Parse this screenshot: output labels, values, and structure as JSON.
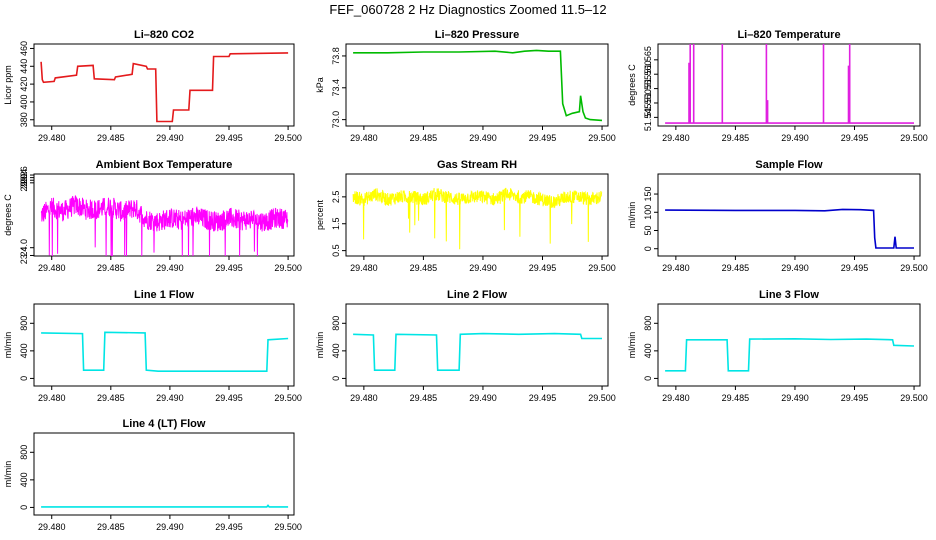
{
  "page": {
    "title": "FEF_060728  2 Hz Diagnostics Zoomed 11.5–12"
  },
  "chart_data": [
    {
      "type": "line",
      "title": "Li–820 CO2",
      "ylabel": "Licor ppm",
      "color": "#e41a1c",
      "xlim": [
        29.4785,
        29.5005
      ],
      "ylim": [
        373,
        465
      ],
      "x_ticks": [
        "29.480",
        "29.485",
        "29.490",
        "29.495",
        "29.500"
      ],
      "y_ticks": [
        {
          "v": 380,
          "label": "380"
        },
        {
          "v": 400,
          "label": "400"
        },
        {
          "v": 420,
          "label": "420"
        },
        {
          "v": 440,
          "label": "440"
        },
        {
          "v": 460,
          "label": "460"
        }
      ],
      "series": [
        {
          "x": [
            29.4791,
            29.4792,
            29.4793,
            29.4802,
            29.4803,
            29.4821,
            29.4822,
            29.4835,
            29.4836,
            29.4853,
            29.4854,
            29.4868,
            29.4869,
            29.488,
            29.4881,
            29.4888,
            29.4889,
            29.4902,
            29.4903,
            29.4916,
            29.4917,
            29.4936,
            29.4937,
            29.495,
            29.4951,
            29.5
          ],
          "y": [
            445,
            425,
            422,
            423,
            427,
            430,
            440,
            441,
            426,
            425,
            428,
            431,
            443,
            440,
            437,
            437,
            378,
            378,
            391,
            391,
            413,
            413,
            451,
            451,
            454,
            455
          ]
        }
      ]
    },
    {
      "type": "line",
      "title": "Li–820 Pressure",
      "ylabel": "kPa",
      "color": "#00bb00",
      "xlim": [
        29.4785,
        29.5005
      ],
      "ylim": [
        72.92,
        73.95
      ],
      "x_ticks": [
        "29.480",
        "29.485",
        "29.490",
        "29.495",
        "29.500"
      ],
      "y_ticks": [
        {
          "v": 73.0,
          "label": "73.0"
        },
        {
          "v": 73.4,
          "label": "73.4"
        },
        {
          "v": 73.8,
          "label": "73.8"
        }
      ],
      "series": [
        {
          "x": [
            29.4791,
            29.482,
            29.485,
            29.488,
            29.491,
            29.4925,
            29.4935,
            29.4945,
            29.4955,
            29.4965,
            29.4967,
            29.497,
            29.4975,
            29.4981,
            29.4982,
            29.4984,
            29.4986,
            29.499,
            29.5
          ],
          "y": [
            73.84,
            73.84,
            73.85,
            73.85,
            73.86,
            73.84,
            73.86,
            73.87,
            73.86,
            73.86,
            73.2,
            73.05,
            73.08,
            73.1,
            73.3,
            73.1,
            73.02,
            73.0,
            72.99
          ]
        }
      ]
    },
    {
      "type": "line",
      "title": "Li–820 Temperature",
      "ylabel": "degrees C",
      "color": "#e020e0",
      "xlim": [
        29.4785,
        29.5005
      ],
      "ylim": [
        51.542,
        51.5705
      ],
      "x_ticks": [
        "29.480",
        "29.485",
        "29.490",
        "29.495",
        "29.500"
      ],
      "y_ticks": [
        {
          "v": 51.545,
          "label": "51.545"
        },
        {
          "v": 51.55,
          "label": "51.550"
        },
        {
          "v": 51.555,
          "label": "51.555"
        },
        {
          "v": 51.56,
          "label": "51.560"
        },
        {
          "v": 51.565,
          "label": "51.565"
        }
      ],
      "series": [
        {
          "x": [
            29.4791,
            29.4811,
            29.4811,
            29.4811,
            29.4812,
            29.4812,
            29.4812,
            29.4815,
            29.4815,
            29.4815,
            29.4839,
            29.4839,
            29.4839,
            29.4876,
            29.4876,
            29.4876,
            29.4877,
            29.4877,
            29.4877,
            29.4924,
            29.4924,
            29.4924,
            29.4945,
            29.4945,
            29.4945,
            29.4946,
            29.4946,
            29.4946,
            29.5
          ],
          "y": [
            51.543,
            51.543,
            51.564,
            51.543,
            51.543,
            51.5705,
            51.543,
            51.543,
            51.5705,
            51.543,
            51.543,
            51.5705,
            51.543,
            51.543,
            51.5705,
            51.543,
            51.543,
            51.551,
            51.543,
            51.543,
            51.5705,
            51.543,
            51.543,
            51.563,
            51.543,
            51.543,
            51.5705,
            51.543,
            51.543
          ]
        }
      ]
    },
    {
      "type": "line",
      "title": "Ambient Box Temperature",
      "ylabel": "degrees C",
      "color": "#ff00ff",
      "xlim": [
        29.4785,
        29.5005
      ],
      "ylim": [
        23.36,
        29.68
      ],
      "x_ticks": [
        "29.480",
        "29.485",
        "29.490",
        "29.495",
        "29.500"
      ],
      "y_ticks": [
        {
          "v": 23.4,
          "label": "23.4"
        },
        {
          "v": 24.0,
          "label": "24.0"
        },
        {
          "v": 29.0,
          "label": "29.0"
        },
        {
          "v": 29.2,
          "label": "29.2"
        },
        {
          "v": 29.4,
          "label": "29.4"
        },
        {
          "v": 29.6,
          "label": "29.6"
        }
      ],
      "series": [
        {
          "x": [
            29.4791,
            29.48,
            29.481,
            29.482,
            29.483,
            29.484,
            29.485,
            29.486,
            29.487,
            29.488,
            29.489,
            29.49,
            29.491,
            29.492,
            29.493,
            29.494,
            29.495,
            29.496,
            29.497,
            29.498,
            29.499,
            29.5
          ],
          "y": [
            26.5,
            27.1,
            26.8,
            27.3,
            26.9,
            27.0,
            27.2,
            26.7,
            27.1,
            26.2,
            26.0,
            26.3,
            26.1,
            26.4,
            26.2,
            26.0,
            26.3,
            26.1,
            26.2,
            26.0,
            26.3,
            26.2
          ],
          "band": 1.6
        }
      ]
    },
    {
      "type": "line",
      "title": "Gas Stream RH",
      "ylabel": "percent",
      "color": "#ffff00",
      "xlim": [
        29.4785,
        29.5005
      ],
      "ylim": [
        0.3,
        3.35
      ],
      "x_ticks": [
        "29.480",
        "29.485",
        "29.490",
        "29.495",
        "29.500"
      ],
      "y_ticks": [
        {
          "v": 0.5,
          "label": "0.5"
        },
        {
          "v": 1.5,
          "label": "1.5"
        },
        {
          "v": 2.5,
          "label": "2.5"
        }
      ],
      "series": [
        {
          "x": [
            29.4791,
            29.48,
            29.481,
            29.482,
            29.483,
            29.484,
            29.485,
            29.486,
            29.487,
            29.488,
            29.489,
            29.49,
            29.491,
            29.492,
            29.493,
            29.494,
            29.495,
            29.496,
            29.497,
            29.498,
            29.499,
            29.5
          ],
          "y": [
            2.5,
            2.4,
            2.6,
            2.4,
            2.5,
            2.5,
            2.4,
            2.6,
            2.5,
            2.4,
            2.5,
            2.5,
            2.4,
            2.6,
            2.5,
            2.5,
            2.4,
            2.3,
            2.5,
            2.5,
            2.4,
            2.5
          ],
          "band": 0.5
        }
      ]
    },
    {
      "type": "line",
      "title": "Sample Flow",
      "ylabel": "ml/min",
      "color": "#0000cc",
      "xlim": [
        29.4785,
        29.5005
      ],
      "ylim": [
        -20,
        205
      ],
      "x_ticks": [
        "29.480",
        "29.485",
        "29.490",
        "29.495",
        "29.500"
      ],
      "y_ticks": [
        {
          "v": 0,
          "label": "0"
        },
        {
          "v": 50,
          "label": "50"
        },
        {
          "v": 100,
          "label": "100"
        },
        {
          "v": 150,
          "label": "150"
        }
      ],
      "series": [
        {
          "x": [
            29.4791,
            29.485,
            29.49,
            29.4925,
            29.494,
            29.4955,
            29.4966,
            29.4967,
            29.4968,
            29.498,
            29.4983,
            29.4984,
            29.4985,
            29.5
          ],
          "y": [
            106,
            105,
            105,
            104,
            108,
            107,
            105,
            30,
            2,
            2,
            2,
            33,
            2,
            2
          ]
        }
      ]
    },
    {
      "type": "line",
      "title": "Line 1 Flow",
      "ylabel": "ml/min",
      "color": "#00e5e5",
      "xlim": [
        29.4785,
        29.5005
      ],
      "ylim": [
        -110,
        1080
      ],
      "x_ticks": [
        "29.480",
        "29.485",
        "29.490",
        "29.495",
        "29.500"
      ],
      "y_ticks": [
        {
          "v": 0,
          "label": "0"
        },
        {
          "v": 400,
          "label": "400"
        },
        {
          "v": 800,
          "label": "800"
        }
      ],
      "series": [
        {
          "x": [
            29.4791,
            29.4826,
            29.4827,
            29.4844,
            29.4845,
            29.4879,
            29.488,
            29.489,
            29.4982,
            29.4983,
            29.5
          ],
          "y": [
            660,
            650,
            120,
            120,
            670,
            660,
            120,
            105,
            105,
            560,
            580
          ]
        }
      ]
    },
    {
      "type": "line",
      "title": "Line 2 Flow",
      "ylabel": "ml/min",
      "color": "#00e5e5",
      "xlim": [
        29.4785,
        29.5005
      ],
      "ylim": [
        -110,
        1080
      ],
      "x_ticks": [
        "29.480",
        "29.485",
        "29.490",
        "29.495",
        "29.500"
      ],
      "y_ticks": [
        {
          "v": 0,
          "label": "0"
        },
        {
          "v": 400,
          "label": "400"
        },
        {
          "v": 800,
          "label": "800"
        }
      ],
      "series": [
        {
          "x": [
            29.4791,
            29.4808,
            29.4809,
            29.4826,
            29.4827,
            29.4861,
            29.4862,
            29.488,
            29.4881,
            29.49,
            29.493,
            29.496,
            29.4982,
            29.4983,
            29.5
          ],
          "y": [
            640,
            630,
            120,
            120,
            640,
            630,
            120,
            120,
            640,
            650,
            640,
            650,
            640,
            580,
            580
          ]
        }
      ]
    },
    {
      "type": "line",
      "title": "Line 3 Flow",
      "ylabel": "ml/min",
      "color": "#00e5e5",
      "xlim": [
        29.4785,
        29.5005
      ],
      "ylim": [
        -110,
        1080
      ],
      "x_ticks": [
        "29.480",
        "29.485",
        "29.490",
        "29.495",
        "29.500"
      ],
      "y_ticks": [
        {
          "v": 0,
          "label": "0"
        },
        {
          "v": 400,
          "label": "400"
        },
        {
          "v": 800,
          "label": "800"
        }
      ],
      "series": [
        {
          "x": [
            29.4791,
            29.4808,
            29.4809,
            29.4843,
            29.4844,
            29.4861,
            29.4862,
            29.49,
            29.493,
            29.496,
            29.4982,
            29.4983,
            29.5
          ],
          "y": [
            110,
            110,
            560,
            560,
            110,
            110,
            570,
            575,
            565,
            570,
            560,
            480,
            470
          ]
        }
      ]
    },
    {
      "type": "line",
      "title": "Line 4 (LT) Flow",
      "ylabel": "ml/min",
      "color": "#00e5e5",
      "xlim": [
        29.4785,
        29.5005
      ],
      "ylim": [
        -110,
        1080
      ],
      "x_ticks": [
        "29.480",
        "29.485",
        "29.490",
        "29.495",
        "29.500"
      ],
      "y_ticks": [
        {
          "v": 0,
          "label": "0"
        },
        {
          "v": 400,
          "label": "400"
        },
        {
          "v": 800,
          "label": "800"
        }
      ],
      "series": [
        {
          "x": [
            29.4791,
            29.49,
            29.4982,
            29.4983,
            29.4984,
            29.5
          ],
          "y": [
            8,
            8,
            8,
            30,
            8,
            8
          ]
        }
      ]
    }
  ]
}
